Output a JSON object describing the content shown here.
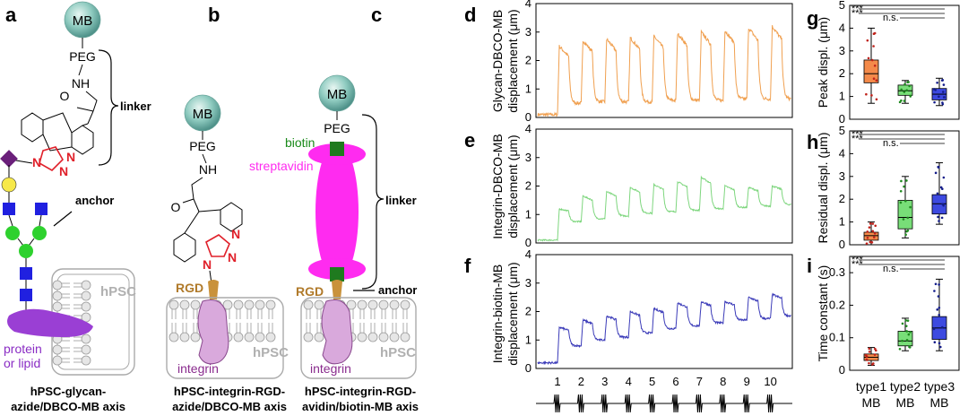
{
  "panels": {
    "a": {
      "label": "a",
      "bead": "MB",
      "peg": "PEG",
      "nh": "NH",
      "o": "O",
      "n1": "N",
      "n2": "N",
      "n3": "N",
      "linker": "linker",
      "anchor": "anchor",
      "cell": "hPSC",
      "membrane_label": "protein\nor lipid",
      "protein_line1": "protein",
      "protein_line2": "or lipid",
      "caption_line1": "hPSC-glycan-",
      "caption_line2": "azide/DBCO-MB axis"
    },
    "b": {
      "label": "b",
      "bead": "MB",
      "peg": "PEG",
      "nh": "NH",
      "o": "O",
      "n1": "N",
      "n2": "N",
      "n3": "N",
      "rgd": "RGD",
      "cell": "hPSC",
      "receptor": "integrin",
      "caption_line1": "hPSC-integrin-RGD-",
      "caption_line2": "azide/DBCO-MB axis"
    },
    "c": {
      "label": "c",
      "bead": "MB",
      "peg": "PEG",
      "biotin": "biotin",
      "streptavidin": "streptavidin",
      "linker": "linker",
      "anchor": "anchor",
      "rgd": "RGD",
      "cell": "hPSC",
      "receptor": "integrin",
      "caption_line1": "hPSC-integrin-RGD-",
      "caption_line2": "avidin/biotin-MB axis"
    }
  },
  "colors": {
    "glycan": "#f0a050",
    "integrin_dbco": "#7ed67e",
    "integrin_biotin": "#3a3ab8",
    "type1": "#f26b1d",
    "type2": "#3fc83f",
    "type3": "#1f2fd6",
    "streptavidin": "#ff2bf0",
    "triazole": "#e0202a",
    "integrin": "#d9a9dc"
  },
  "traces": {
    "d": {
      "label": "d",
      "ylabel_line1": "Glycan-DBCO-MB",
      "ylabel_line2": "displacement (μm)",
      "yticks": [
        "0",
        "1",
        "2",
        "3",
        "4"
      ],
      "ylim": [
        0,
        4
      ]
    },
    "e": {
      "label": "e",
      "ylabel_line1": "Integrin-DBCO-MB",
      "ylabel_line2": "displacement (μm)",
      "yticks": [
        "0",
        "1",
        "2",
        "3",
        "4"
      ],
      "ylim": [
        0,
        4
      ]
    },
    "f": {
      "label": "f",
      "ylabel_line1": "Integrin-biotin-MB",
      "ylabel_line2": "displacement (μm)",
      "yticks": [
        "0",
        "1",
        "2",
        "3",
        "4"
      ],
      "ylim": [
        0,
        4
      ]
    },
    "pulse_labels": [
      "1",
      "2",
      "3",
      "4",
      "5",
      "6",
      "7",
      "8",
      "9",
      "10"
    ]
  },
  "chart_data": [
    {
      "type": "line",
      "panel": "d",
      "title": "",
      "ylabel": "Glycan-DBCO-MB displacement (μm)",
      "xlabel": "",
      "ylim": [
        0,
        4
      ],
      "x_pulses": [
        1,
        2,
        3,
        4,
        5,
        6,
        7,
        8,
        9,
        10
      ],
      "baseline": [
        0.1,
        0.5,
        0.55,
        0.55,
        0.55,
        0.6,
        0.6,
        0.6,
        0.65,
        0.65,
        0.65
      ],
      "peak": [
        2.5,
        2.7,
        2.75,
        2.8,
        2.85,
        2.95,
        3.0,
        3.05,
        3.15,
        3.2
      ]
    },
    {
      "type": "line",
      "panel": "e",
      "title": "",
      "ylabel": "Integrin-DBCO-MB displacement (μm)",
      "xlabel": "",
      "ylim": [
        0,
        4
      ],
      "x_pulses": [
        1,
        2,
        3,
        4,
        5,
        6,
        7,
        8,
        9,
        10
      ],
      "baseline": [
        0.1,
        0.75,
        0.85,
        0.95,
        1.05,
        1.1,
        1.15,
        1.2,
        1.25,
        1.3,
        1.35
      ],
      "peak": [
        1.2,
        1.65,
        1.8,
        1.95,
        2.05,
        2.15,
        2.3,
        2.0,
        1.95,
        2.0
      ]
    },
    {
      "type": "line",
      "panel": "f",
      "title": "",
      "ylabel": "Integrin-biotin-MB displacement (μm)",
      "xlabel": "",
      "ylim": [
        0,
        4
      ],
      "x_pulses": [
        1,
        2,
        3,
        4,
        5,
        6,
        7,
        8,
        9,
        10
      ],
      "baseline": [
        0.2,
        0.8,
        1.0,
        1.1,
        1.25,
        1.4,
        1.5,
        1.6,
        1.7,
        1.75,
        1.85
      ],
      "peak": [
        1.45,
        1.7,
        1.85,
        2.0,
        2.1,
        2.3,
        2.35,
        2.35,
        2.5,
        2.6
      ]
    },
    {
      "type": "box",
      "panel": "g",
      "ylabel": "Peak displ. (μm)",
      "ylim": [
        0,
        5
      ],
      "yticks": [
        "0",
        "1",
        "2",
        "3",
        "4",
        "5"
      ],
      "categories": [
        "type1 MB",
        "type2 MB",
        "type3 MB"
      ],
      "boxes": [
        {
          "min": 0.7,
          "q1": 1.6,
          "median": 2.0,
          "q3": 2.6,
          "max": 4.0
        },
        {
          "min": 0.7,
          "q1": 1.05,
          "median": 1.25,
          "q3": 1.5,
          "max": 1.7
        },
        {
          "min": 0.6,
          "q1": 0.85,
          "median": 1.1,
          "q3": 1.35,
          "max": 1.8
        }
      ],
      "significance": [
        {
          "from": 1,
          "to": 3,
          "text": "***"
        },
        {
          "from": 1,
          "to": 2,
          "text": "***"
        },
        {
          "from": 2,
          "to": 3,
          "text": "n.s."
        }
      ]
    },
    {
      "type": "box",
      "panel": "h",
      "ylabel": "Residual displ. (μm)",
      "ylim": [
        0,
        5
      ],
      "yticks": [
        "0",
        "1",
        "2",
        "3",
        "4",
        "5"
      ],
      "categories": [
        "type1 MB",
        "type2 MB",
        "type3 MB"
      ],
      "boxes": [
        {
          "min": 0.0,
          "q1": 0.2,
          "median": 0.4,
          "q3": 0.55,
          "max": 1.0
        },
        {
          "min": 0.3,
          "q1": 0.7,
          "median": 1.2,
          "q3": 1.95,
          "max": 3.0
        },
        {
          "min": 0.9,
          "q1": 1.35,
          "median": 1.8,
          "q3": 2.2,
          "max": 3.6
        }
      ],
      "significance": [
        {
          "from": 1,
          "to": 3,
          "text": "***"
        },
        {
          "from": 1,
          "to": 2,
          "text": "***"
        },
        {
          "from": 2,
          "to": 3,
          "text": "n.s."
        }
      ]
    },
    {
      "type": "box",
      "panel": "i",
      "ylabel": "Time constant (s)",
      "ylim": [
        0,
        0.35
      ],
      "yticks": [
        "0",
        "0.1",
        "0.2",
        "0.3"
      ],
      "ytick_values": [
        0,
        0.1,
        0.2,
        0.3
      ],
      "categories": [
        "type1 MB",
        "type2 MB",
        "type3 MB"
      ],
      "category_line1": [
        "type1",
        "type2",
        "type3"
      ],
      "category_line2": [
        "MB",
        "MB",
        "MB"
      ],
      "boxes": [
        {
          "min": 0.015,
          "q1": 0.03,
          "median": 0.04,
          "q3": 0.05,
          "max": 0.07
        },
        {
          "min": 0.06,
          "q1": 0.075,
          "median": 0.09,
          "q3": 0.12,
          "max": 0.16
        },
        {
          "min": 0.06,
          "q1": 0.095,
          "median": 0.13,
          "q3": 0.165,
          "max": 0.28
        }
      ],
      "significance": [
        {
          "from": 1,
          "to": 3,
          "text": "***"
        },
        {
          "from": 1,
          "to": 2,
          "text": "***"
        },
        {
          "from": 2,
          "to": 3,
          "text": "n.s."
        }
      ]
    }
  ]
}
